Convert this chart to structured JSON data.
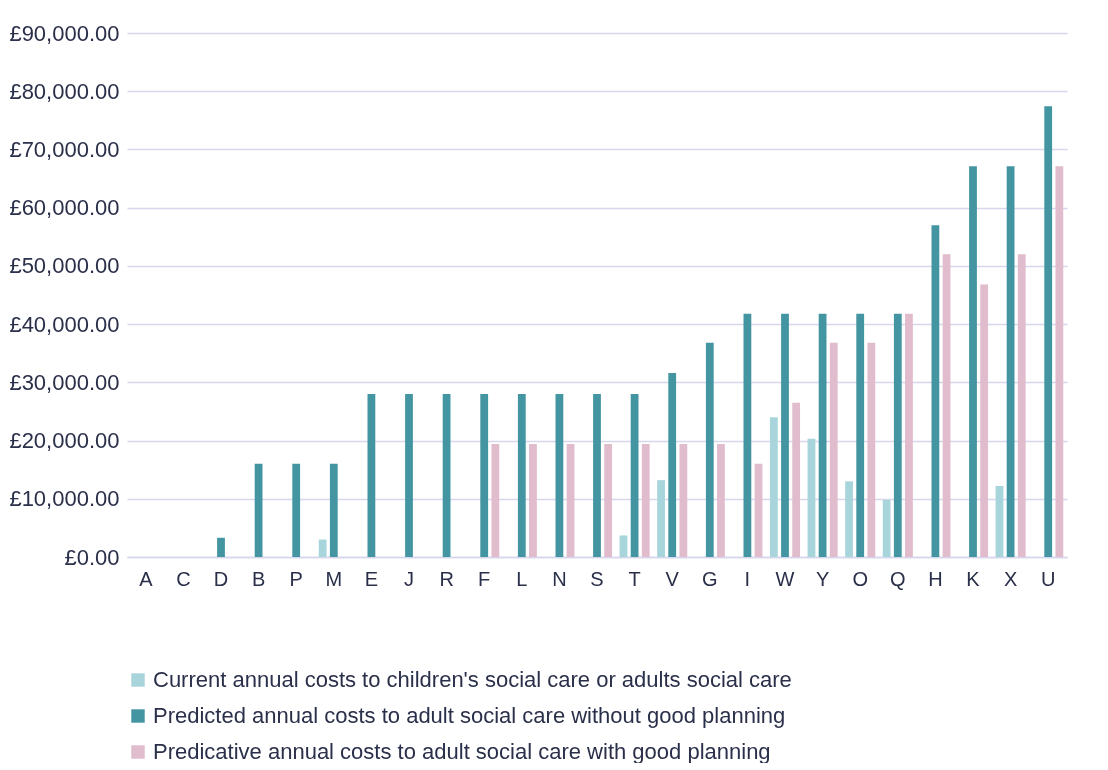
{
  "chart_data": {
    "type": "bar",
    "categories": [
      "A",
      "C",
      "D",
      "B",
      "P",
      "M",
      "E",
      "J",
      "R",
      "F",
      "L",
      "N",
      "S",
      "T",
      "V",
      "G",
      "I",
      "W",
      "Y",
      "O",
      "Q",
      "H",
      "K",
      "X",
      "U"
    ],
    "series": [
      {
        "name": "Current annual costs to children's social care or adults social care",
        "color": "#a8d5db",
        "values": [
          0,
          0,
          0,
          0,
          0,
          3000,
          0,
          0,
          0,
          0,
          0,
          0,
          0,
          3700,
          13200,
          0,
          0,
          24000,
          20300,
          13000,
          9800,
          0,
          0,
          12200,
          0
        ]
      },
      {
        "name": "Predicted annual costs to adult social care without good planning",
        "color": "#4495a2",
        "values": [
          0,
          0,
          3300,
          16000,
          16000,
          16000,
          28000,
          28000,
          28000,
          28000,
          28000,
          28000,
          28000,
          28000,
          31600,
          36800,
          41800,
          41800,
          41800,
          41800,
          41800,
          57000,
          67100,
          67100,
          77400
        ]
      },
      {
        "name": "Predicative annual costs to adult social care with good planning",
        "color": "#e0bccd",
        "values": [
          0,
          0,
          0,
          0,
          0,
          0,
          0,
          0,
          0,
          19400,
          19400,
          19400,
          19400,
          19400,
          19400,
          19400,
          16000,
          26500,
          36800,
          36800,
          41800,
          52000,
          46800,
          52000,
          67100
        ]
      }
    ],
    "ylim": [
      0,
      90000
    ],
    "yticks": [
      {
        "value": 0,
        "label": "£0.00"
      },
      {
        "value": 10000,
        "label": "£10,000.00"
      },
      {
        "value": 20000,
        "label": "£20,000.00"
      },
      {
        "value": 30000,
        "label": "£30,000.00"
      },
      {
        "value": 40000,
        "label": "£40,000.00"
      },
      {
        "value": 50000,
        "label": "£50,000.00"
      },
      {
        "value": 60000,
        "label": "£60,000.00"
      },
      {
        "value": 70000,
        "label": "£70,000.00"
      },
      {
        "value": 80000,
        "label": "£80,000.00"
      },
      {
        "value": 90000,
        "label": "£90,000.00"
      }
    ],
    "grid": "y",
    "legend": "bottom"
  }
}
